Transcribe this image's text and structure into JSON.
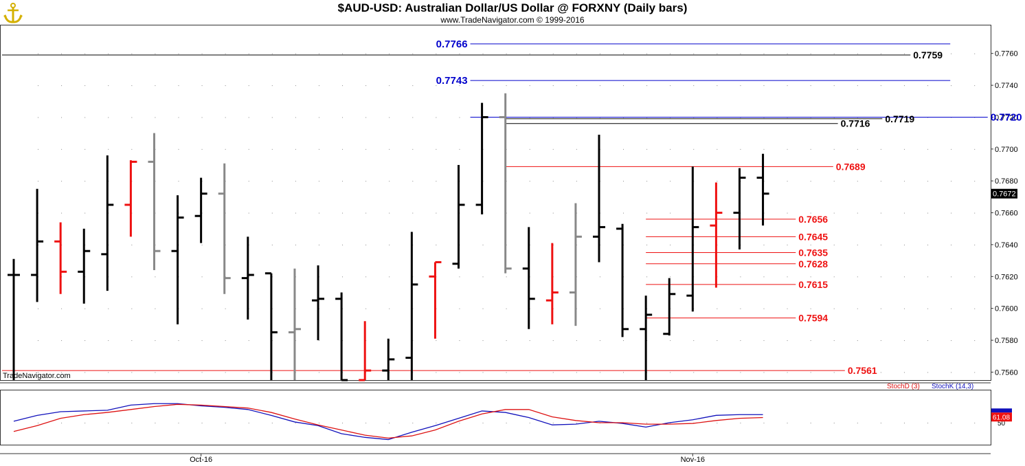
{
  "header": {
    "title": "$AUD-USD:  Australian Dollar/US Dollar @ FORXNY  (Daily bars)",
    "subtitle": "www.TradeNavigator.com © 1999-2016",
    "watermark": "TradeNavigator.com"
  },
  "colors": {
    "up": "#000000",
    "down": "#ee1111",
    "gray": "#888888",
    "blue": "#0000cc",
    "red_line": "#dd1111",
    "stoch_k": "#1010bb",
    "stoch_d": "#dd1111",
    "logo": "#d4b000"
  },
  "chart_data": [
    {
      "type": "ohlc",
      "y_axis": {
        "min": 0.7555,
        "max": 0.7778,
        "ticks": [
          "0.7560",
          "0.7580",
          "0.7600",
          "0.7620",
          "0.7640",
          "0.7660",
          "0.7680",
          "0.7700",
          "0.7720",
          "0.7740",
          "0.7760"
        ],
        "last_price_label": "0.7672"
      },
      "x_axis": {
        "labels": [
          "Oct-16",
          "Nov-16"
        ],
        "label_bar_index": [
          8.0,
          29.0
        ]
      },
      "bars": [
        {
          "o": 0.7621,
          "h": 0.7631,
          "l": 0.7555,
          "c": 0.7621,
          "color": "up"
        },
        {
          "o": 0.7621,
          "h": 0.7675,
          "l": 0.7604,
          "c": 0.7642,
          "color": "up"
        },
        {
          "o": 0.7642,
          "h": 0.7654,
          "l": 0.7609,
          "c": 0.7623,
          "color": "down"
        },
        {
          "o": 0.7623,
          "h": 0.765,
          "l": 0.7603,
          "c": 0.7636,
          "color": "up"
        },
        {
          "o": 0.7634,
          "h": 0.7696,
          "l": 0.7611,
          "c": 0.7665,
          "color": "up"
        },
        {
          "o": 0.7665,
          "h": 0.7693,
          "l": 0.7645,
          "c": 0.7692,
          "color": "down"
        },
        {
          "o": 0.7692,
          "h": 0.771,
          "l": 0.7624,
          "c": 0.7636,
          "color": "gray"
        },
        {
          "o": 0.7636,
          "h": 0.7671,
          "l": 0.759,
          "c": 0.7657,
          "color": "up"
        },
        {
          "o": 0.7658,
          "h": 0.7682,
          "l": 0.7641,
          "c": 0.7672,
          "color": "up"
        },
        {
          "o": 0.7672,
          "h": 0.7691,
          "l": 0.7609,
          "c": 0.7619,
          "color": "gray"
        },
        {
          "o": 0.7619,
          "h": 0.7645,
          "l": 0.7593,
          "c": 0.7621,
          "color": "up"
        },
        {
          "o": 0.7622,
          "h": 0.7622,
          "l": 0.7555,
          "c": 0.7585,
          "color": "up"
        },
        {
          "o": 0.7585,
          "h": 0.7625,
          "l": 0.7555,
          "c": 0.7587,
          "color": "gray"
        },
        {
          "o": 0.7605,
          "h": 0.7627,
          "l": 0.758,
          "c": 0.7606,
          "color": "up"
        },
        {
          "o": 0.7606,
          "h": 0.761,
          "l": 0.7555,
          "c": 0.7555,
          "color": "up"
        },
        {
          "o": 0.7555,
          "h": 0.7592,
          "l": 0.7555,
          "c": 0.7561,
          "color": "down"
        },
        {
          "o": 0.7561,
          "h": 0.7581,
          "l": 0.7555,
          "c": 0.7568,
          "color": "up"
        },
        {
          "o": 0.7569,
          "h": 0.7648,
          "l": 0.7555,
          "c": 0.7615,
          "color": "up"
        },
        {
          "o": 0.762,
          "h": 0.7629,
          "l": 0.7581,
          "c": 0.7629,
          "color": "down"
        },
        {
          "o": 0.7628,
          "h": 0.769,
          "l": 0.7625,
          "c": 0.7665,
          "color": "up"
        },
        {
          "o": 0.7665,
          "h": 0.7729,
          "l": 0.7659,
          "c": 0.772,
          "color": "up"
        },
        {
          "o": 0.772,
          "h": 0.7735,
          "l": 0.7622,
          "c": 0.7625,
          "color": "gray"
        },
        {
          "o": 0.7625,
          "h": 0.7651,
          "l": 0.7587,
          "c": 0.7606,
          "color": "up"
        },
        {
          "o": 0.7605,
          "h": 0.7641,
          "l": 0.759,
          "c": 0.761,
          "color": "down"
        },
        {
          "o": 0.761,
          "h": 0.7666,
          "l": 0.7589,
          "c": 0.7645,
          "color": "gray"
        },
        {
          "o": 0.7645,
          "h": 0.7709,
          "l": 0.7629,
          "c": 0.7651,
          "color": "up"
        },
        {
          "o": 0.765,
          "h": 0.7653,
          "l": 0.7582,
          "c": 0.7587,
          "color": "up"
        },
        {
          "o": 0.7587,
          "h": 0.7608,
          "l": 0.7555,
          "c": 0.7596,
          "color": "up"
        },
        {
          "o": 0.7584,
          "h": 0.7619,
          "l": 0.7583,
          "c": 0.7609,
          "color": "up"
        },
        {
          "o": 0.7608,
          "h": 0.7689,
          "l": 0.7598,
          "c": 0.7651,
          "color": "up"
        },
        {
          "o": 0.7652,
          "h": 0.7679,
          "l": 0.7613,
          "c": 0.766,
          "color": "down"
        },
        {
          "o": 0.766,
          "h": 0.7688,
          "l": 0.7637,
          "c": 0.7682,
          "color": "up"
        },
        {
          "o": 0.7682,
          "h": 0.7697,
          "l": 0.7652,
          "c": 0.7672,
          "color": "up"
        }
      ],
      "levels": [
        {
          "value": 0.7766,
          "label": "0.7766",
          "color": "blue",
          "from_bar": 19.5,
          "to_bar": 40.0,
          "label_at": "start"
        },
        {
          "value": 0.7759,
          "label": "0.7759",
          "color": "up",
          "from_bar": -0.5,
          "to_bar": 38.3,
          "label_at": "end"
        },
        {
          "value": 0.7743,
          "label": "0.7743",
          "color": "blue",
          "from_bar": 19.5,
          "to_bar": 40.0,
          "label_at": "start"
        },
        {
          "value": 0.772,
          "label": "0.7720",
          "color": "blue",
          "from_bar": 19.5,
          "to_bar": 41.6,
          "label_at": "end"
        },
        {
          "value": 0.7719,
          "label": "0.7719",
          "color": "up",
          "from_bar": 21.0,
          "to_bar": 37.1,
          "label_at": "end"
        },
        {
          "value": 0.7716,
          "label": "0.7716",
          "color": "up",
          "from_bar": 21.0,
          "to_bar": 35.2,
          "label_at": "end"
        },
        {
          "value": 0.7689,
          "label": "0.7689",
          "color": "down",
          "from_bar": 21.0,
          "to_bar": 35.0,
          "label_at": "end"
        },
        {
          "value": 0.7656,
          "label": "0.7656",
          "color": "down",
          "from_bar": 27.0,
          "to_bar": 33.4,
          "label_at": "end"
        },
        {
          "value": 0.7645,
          "label": "0.7645",
          "color": "down",
          "from_bar": 27.0,
          "to_bar": 33.4,
          "label_at": "end"
        },
        {
          "value": 0.7635,
          "label": "0.7635",
          "color": "down",
          "from_bar": 27.0,
          "to_bar": 33.4,
          "label_at": "end"
        },
        {
          "value": 0.7628,
          "label": "0.7628",
          "color": "down",
          "from_bar": 27.0,
          "to_bar": 33.4,
          "label_at": "end"
        },
        {
          "value": 0.7615,
          "label": "0.7615",
          "color": "down",
          "from_bar": 27.0,
          "to_bar": 33.4,
          "label_at": "end"
        },
        {
          "value": 0.7594,
          "label": "0.7594",
          "color": "down",
          "from_bar": 27.0,
          "to_bar": 33.4,
          "label_at": "end"
        },
        {
          "value": 0.7561,
          "label": "0.7561",
          "color": "down",
          "from_bar": -0.5,
          "to_bar": 35.5,
          "label_at": "end"
        }
      ]
    },
    {
      "type": "line",
      "legend": [
        "StochD (3)",
        "StochK (14,3)"
      ],
      "y_axis": {
        "min": 20,
        "max": 95,
        "ticks": [
          "50"
        ]
      },
      "last_label": "61.08",
      "series": [
        {
          "name": "StochK (14,3)",
          "color": "stoch_k",
          "values": [
            52,
            60,
            65,
            66,
            67,
            74,
            76,
            76,
            73,
            71,
            68,
            60,
            51,
            46,
            35,
            30,
            27,
            37,
            46,
            56,
            66,
            64,
            57,
            47,
            48,
            52,
            49,
            44,
            50,
            54,
            60,
            61,
            61
          ]
        },
        {
          "name": "StochD (3)",
          "color": "stoch_d",
          "values": [
            38,
            46,
            56,
            61,
            64,
            68,
            72,
            75,
            74,
            72,
            70,
            64,
            55,
            47,
            40,
            33,
            29,
            32,
            40,
            52,
            62,
            68,
            68,
            58,
            53,
            50,
            50,
            48,
            48,
            49,
            53,
            56,
            57
          ]
        }
      ]
    }
  ]
}
